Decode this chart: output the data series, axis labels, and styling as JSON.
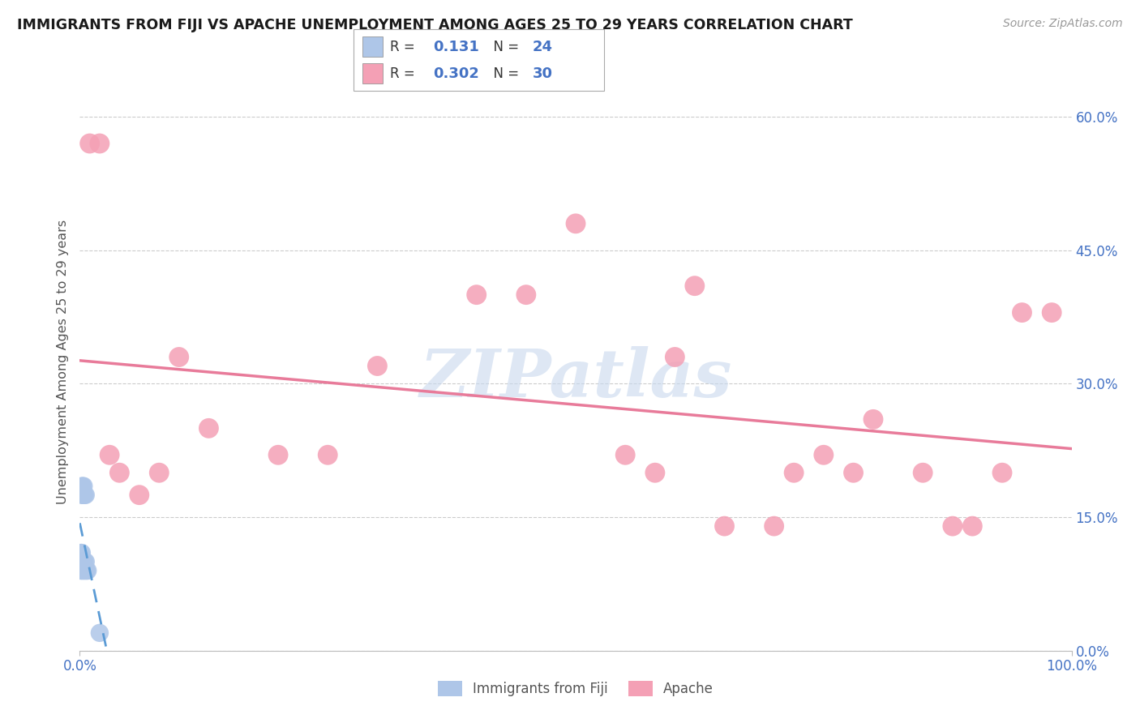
{
  "title": "IMMIGRANTS FROM FIJI VS APACHE UNEMPLOYMENT AMONG AGES 25 TO 29 YEARS CORRELATION CHART",
  "source": "Source: ZipAtlas.com",
  "ylabel_label": "Unemployment Among Ages 25 to 29 years",
  "legend_label1": "Immigrants from Fiji",
  "legend_label2": "Apache",
  "R1": 0.131,
  "N1": 24,
  "R2": 0.302,
  "N2": 30,
  "xlim": [
    0.0,
    1.0
  ],
  "ylim": [
    0.0,
    0.65
  ],
  "yticks": [
    0.0,
    0.15,
    0.3,
    0.45,
    0.6
  ],
  "ytick_labels": [
    "0.0%",
    "15.0%",
    "30.0%",
    "45.0%",
    "60.0%"
  ],
  "xtick_positions": [
    0.0,
    1.0
  ],
  "xtick_labels": [
    "0.0%",
    "100.0%"
  ],
  "color_blue": "#aec6e8",
  "color_pink": "#f4a0b5",
  "color_blue_line": "#5b9bd5",
  "color_pink_line": "#e87b9a",
  "watermark": "ZIPatlas",
  "fiji_x": [
    0.001,
    0.001,
    0.001,
    0.002,
    0.002,
    0.002,
    0.002,
    0.002,
    0.003,
    0.003,
    0.003,
    0.003,
    0.004,
    0.004,
    0.004,
    0.005,
    0.005,
    0.005,
    0.006,
    0.006,
    0.006,
    0.007,
    0.008,
    0.02
  ],
  "fiji_y": [
    0.09,
    0.1,
    0.11,
    0.09,
    0.1,
    0.11,
    0.175,
    0.185,
    0.09,
    0.1,
    0.175,
    0.185,
    0.09,
    0.175,
    0.185,
    0.09,
    0.1,
    0.175,
    0.09,
    0.1,
    0.175,
    0.09,
    0.09,
    0.02
  ],
  "apache_x": [
    0.01,
    0.02,
    0.03,
    0.04,
    0.06,
    0.08,
    0.1,
    0.13,
    0.6,
    0.62,
    0.65,
    0.7,
    0.72,
    0.75,
    0.78,
    0.8,
    0.85,
    0.88,
    0.9,
    0.93,
    0.95,
    0.98,
    0.2,
    0.25,
    0.55,
    0.58,
    0.5,
    0.45,
    0.4,
    0.3
  ],
  "apache_y": [
    0.57,
    0.57,
    0.22,
    0.2,
    0.175,
    0.2,
    0.33,
    0.25,
    0.33,
    0.41,
    0.14,
    0.14,
    0.2,
    0.22,
    0.2,
    0.26,
    0.2,
    0.14,
    0.14,
    0.2,
    0.38,
    0.38,
    0.22,
    0.22,
    0.22,
    0.2,
    0.48,
    0.4,
    0.4,
    0.32
  ],
  "grid_color": "#cccccc",
  "background_color": "#ffffff",
  "tick_color": "#4472c4"
}
